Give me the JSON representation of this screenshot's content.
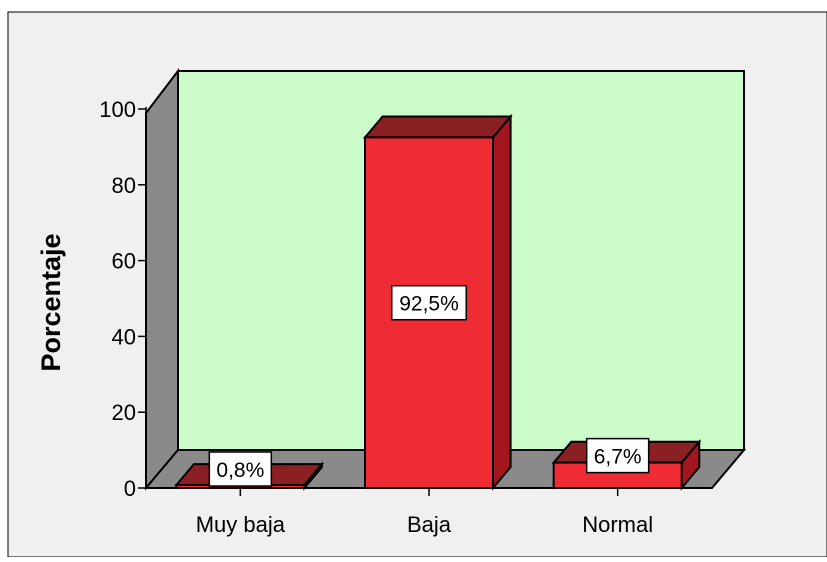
{
  "chart_data": {
    "type": "bar",
    "style": "3d",
    "title": "",
    "xlabel": "",
    "ylabel": "Porcentaje",
    "categories": [
      "Muy baja",
      "Baja",
      "Normal"
    ],
    "values": [
      0.8,
      92.5,
      6.7
    ],
    "data_labels": [
      "0,8%",
      "92,5%",
      "6,7%"
    ],
    "ylim": [
      0,
      100
    ],
    "yticks": [
      0,
      20,
      40,
      60,
      80,
      100
    ],
    "ytick_labels": [
      "0",
      "20",
      "40",
      "60",
      "80",
      "100"
    ],
    "grid": false,
    "legend": "none",
    "colors": {
      "bar_front": "#ef2b33",
      "bar_top": "#8a1f24",
      "bar_side": "#a3161d",
      "plot_background": "#cdfccb",
      "wall_side": "#8a8a8a",
      "floor": "#8a8a8a",
      "frame_background": "#f0f0f0"
    }
  }
}
